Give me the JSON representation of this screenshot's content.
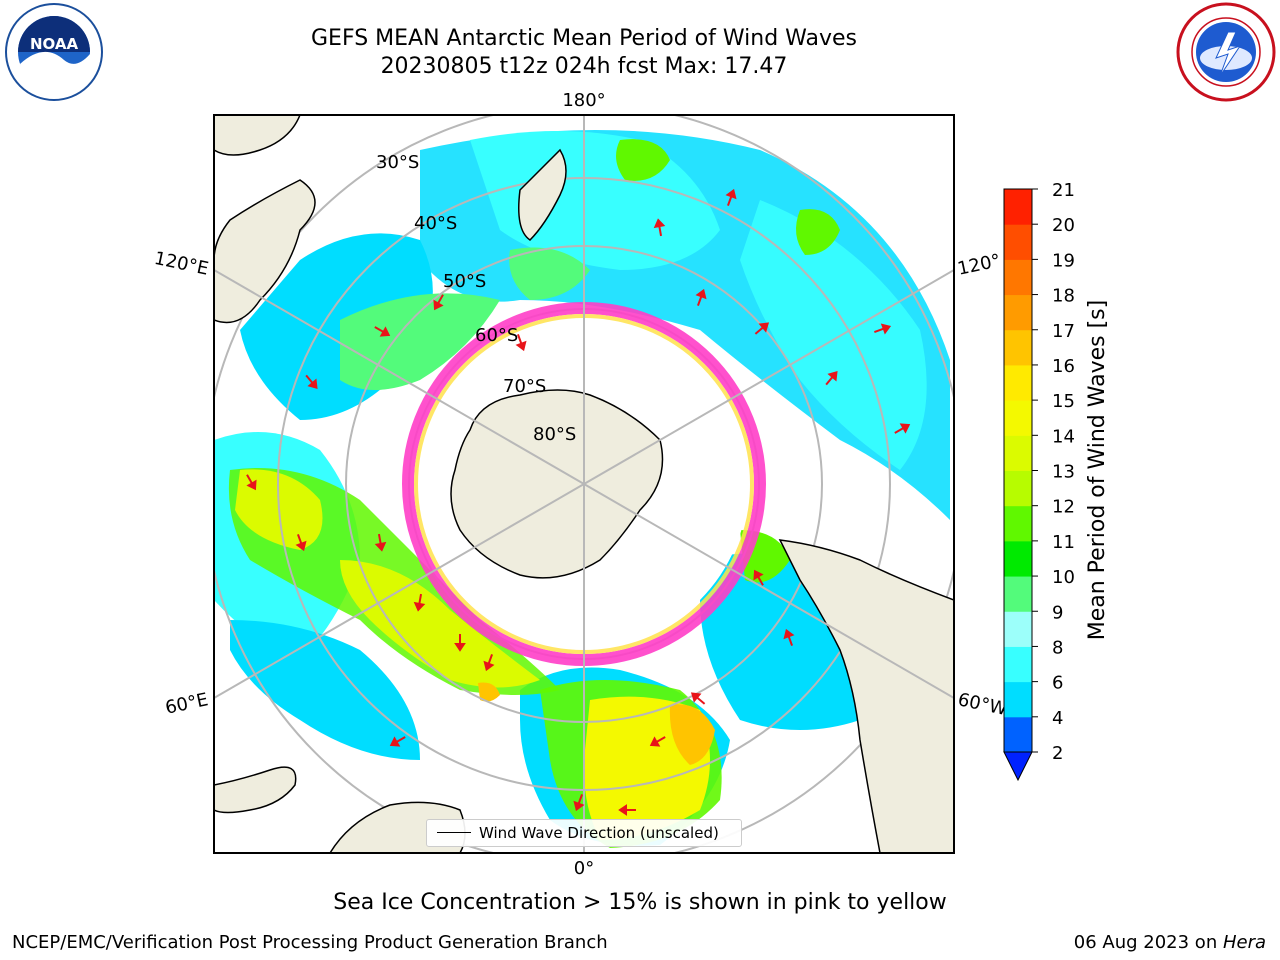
{
  "header": {
    "title_line1": "GEFS MEAN Antarctic Mean Period of Wind Waves",
    "title_line2": "20230805 t12z 024h fcst   Max: 17.47"
  },
  "logos": {
    "noaa": {
      "icon": "noaa-logo-icon",
      "text": "NOAA"
    },
    "nws": {
      "icon": "nws-logo-icon"
    }
  },
  "map": {
    "projection": "south-polar-stereographic",
    "longitude_labels": {
      "top": "180°",
      "bottom": "0°",
      "left_upper": "120°E",
      "left_lower": "60°E",
      "right_upper": "120°",
      "right_lower": "60°W"
    },
    "latitude_labels": [
      "30°S",
      "40°S",
      "50°S",
      "60°S",
      "70°S",
      "80°S"
    ],
    "legend_label": "Wind Wave Direction (unscaled)",
    "land_color": "#efedde",
    "grid_color": "#b8b8b8",
    "ice_colors": [
      "#ff3ec8",
      "#ffe24a"
    ],
    "arrow_color": "#e8141a"
  },
  "colorbar": {
    "label": "Mean Period of Wind Waves [s]",
    "ticks": [
      "2",
      "4",
      "6",
      "8",
      "9",
      "10",
      "11",
      "12",
      "13",
      "14",
      "15",
      "16",
      "17",
      "18",
      "19",
      "20",
      "21"
    ],
    "colors": [
      "#0062ff",
      "#00ddff",
      "#38ffff",
      "#9cfffa",
      "#53fb7b",
      "#00ea00",
      "#60f800",
      "#b7fc00",
      "#dbfb00",
      "#f4f900",
      "#ffea00",
      "#ffc400",
      "#ff9b00",
      "#ff7700",
      "#ff4e00",
      "#ff2100"
    ],
    "extend_color": "#0022ff"
  },
  "notes": {
    "sea_ice": "Sea Ice Concentration > 15% is shown in pink to yellow"
  },
  "footer": {
    "left": "NCEP/EMC/Verification Post Processing Product Generation Branch",
    "date": "06 Aug 2023 on ",
    "machine": "Hera"
  }
}
